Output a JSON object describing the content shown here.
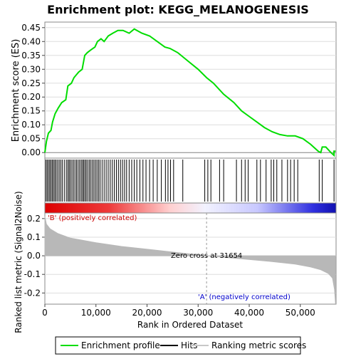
{
  "chart_data": {
    "type": "line",
    "title": "Enrichment plot: KEGG_MELANOGENESIS",
    "xlabel": "Rank in Ordered Dataset",
    "es_panel": {
      "ylabel": "Enrichment score (ES)",
      "ylim": [
        -0.02,
        0.47
      ],
      "yticks": [
        0.0,
        0.05,
        0.1,
        0.15,
        0.2,
        0.25,
        0.3,
        0.35,
        0.4,
        0.45
      ],
      "ytick_labels": [
        "0.00",
        "0.05",
        "0.10",
        "0.15",
        "0.20",
        "0.25",
        "0.30",
        "0.35",
        "0.40",
        "0.45"
      ],
      "line_color": "#00dd00",
      "points": [
        [
          0,
          0.0
        ],
        [
          300,
          0.04
        ],
        [
          700,
          0.07
        ],
        [
          1200,
          0.08
        ],
        [
          1500,
          0.11
        ],
        [
          2000,
          0.14
        ],
        [
          2600,
          0.16
        ],
        [
          3300,
          0.18
        ],
        [
          4100,
          0.19
        ],
        [
          4500,
          0.24
        ],
        [
          5200,
          0.25
        ],
        [
          5700,
          0.27
        ],
        [
          6600,
          0.29
        ],
        [
          7300,
          0.3
        ],
        [
          7800,
          0.35
        ],
        [
          8300,
          0.36
        ],
        [
          9000,
          0.37
        ],
        [
          9800,
          0.38
        ],
        [
          10300,
          0.4
        ],
        [
          11000,
          0.41
        ],
        [
          11600,
          0.4
        ],
        [
          12400,
          0.42
        ],
        [
          13300,
          0.43
        ],
        [
          14300,
          0.44
        ],
        [
          15300,
          0.44
        ],
        [
          16500,
          0.43
        ],
        [
          17500,
          0.445
        ],
        [
          19000,
          0.43
        ],
        [
          20500,
          0.42
        ],
        [
          22000,
          0.4
        ],
        [
          23500,
          0.38
        ],
        [
          24500,
          0.375
        ],
        [
          26000,
          0.36
        ],
        [
          28000,
          0.33
        ],
        [
          30000,
          0.3
        ],
        [
          31654,
          0.27
        ],
        [
          33000,
          0.25
        ],
        [
          35000,
          0.21
        ],
        [
          37000,
          0.18
        ],
        [
          38500,
          0.15
        ],
        [
          40000,
          0.13
        ],
        [
          41500,
          0.11
        ],
        [
          43000,
          0.09
        ],
        [
          44500,
          0.075
        ],
        [
          46000,
          0.065
        ],
        [
          47500,
          0.06
        ],
        [
          49000,
          0.06
        ],
        [
          50500,
          0.05
        ],
        [
          52000,
          0.03
        ],
        [
          53500,
          0.005
        ],
        [
          54000,
          0.0
        ],
        [
          54300,
          0.02
        ],
        [
          55000,
          0.02
        ],
        [
          56000,
          0.0
        ],
        [
          56600,
          -0.01
        ],
        [
          56600,
          0.005
        ],
        [
          56900,
          0.005
        ]
      ]
    },
    "hits_panel": {
      "positions": [
        200,
        450,
        700,
        950,
        1200,
        1450,
        1700,
        1950,
        2200,
        2500,
        2800,
        3100,
        3400,
        3800,
        4200,
        4500,
        4750,
        5000,
        5300,
        5600,
        5900,
        6200,
        6500,
        6800,
        7100,
        7350,
        7600,
        7850,
        8100,
        8400,
        8700,
        9000,
        9300,
        9600,
        9900,
        10200,
        10500,
        10800,
        11200,
        11600,
        12000,
        12400,
        12800,
        13200,
        13600,
        14000,
        14400,
        14800,
        15200,
        15600,
        16000,
        16500,
        17000,
        17500,
        18000,
        18600,
        19200,
        19800,
        20500,
        21200,
        22000,
        22800,
        23600,
        24100,
        24600,
        25200,
        27000,
        31300,
        31900,
        32500,
        34200,
        35000,
        37500,
        38500,
        39200,
        39800,
        41500,
        42200,
        43300,
        44300,
        44800,
        45400,
        46400,
        47500,
        48100,
        48800,
        49500,
        53700,
        54300,
        56600
      ]
    },
    "metric_panel": {
      "ylabel": "Ranked list metric (Signal2Noise)",
      "ylim": [
        -0.26,
        0.23
      ],
      "yticks": [
        -0.2,
        -0.1,
        0.0,
        0.1,
        0.2
      ],
      "ytick_labels": [
        "-0.2",
        "-0.1",
        "0.0",
        "0.1",
        "0.2"
      ],
      "fill_color": "#b8b8b8",
      "curve": [
        [
          0,
          0.21
        ],
        [
          300,
          0.17
        ],
        [
          1000,
          0.145
        ],
        [
          2500,
          0.12
        ],
        [
          5000,
          0.095
        ],
        [
          10000,
          0.07
        ],
        [
          15000,
          0.05
        ],
        [
          20000,
          0.035
        ],
        [
          25000,
          0.02
        ],
        [
          31654,
          0.0
        ],
        [
          38000,
          -0.015
        ],
        [
          44000,
          -0.03
        ],
        [
          49000,
          -0.045
        ],
        [
          52000,
          -0.06
        ],
        [
          54000,
          -0.075
        ],
        [
          55500,
          -0.095
        ],
        [
          56300,
          -0.12
        ],
        [
          56700,
          -0.18
        ],
        [
          56900,
          -0.26
        ]
      ],
      "zero_cross_label": "Zero cross at 31654",
      "zero_cross_x": 31654,
      "pos_label": "'B' (positively correlated)",
      "neg_label": "'A' (negatively correlated)",
      "pos_color": "#cc0000",
      "neg_color": "#0000cc"
    },
    "xlim": [
      0,
      57000
    ],
    "xticks": [
      0,
      10000,
      20000,
      30000,
      40000,
      50000
    ],
    "xtick_labels": [
      "0",
      "10,000",
      "20,000",
      "30,000",
      "40,000",
      "50,000"
    ],
    "legend": {
      "placement": "bottom",
      "items": [
        {
          "label": "Enrichment profile",
          "color": "#00dd00",
          "kind": "line"
        },
        {
          "label": "Hits",
          "color": "#000000",
          "kind": "line"
        },
        {
          "label": "Ranking metric scores",
          "color": "#c8c8c8",
          "kind": "line"
        }
      ]
    }
  }
}
